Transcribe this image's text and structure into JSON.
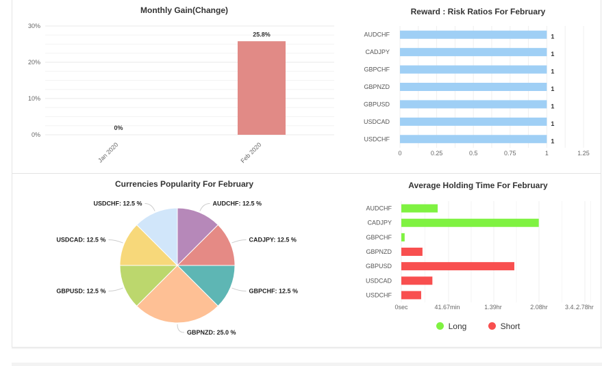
{
  "panels": {
    "monthly_gain": {
      "title": "Monthly Gain(Change)"
    },
    "risk_ratios": {
      "title": "Reward : Risk Ratios For February"
    },
    "popularity": {
      "title": "Currencies Popularity For February"
    },
    "holding_time": {
      "title": "Average Holding Time For February"
    }
  },
  "chart_data": [
    {
      "type": "bar",
      "title": "Monthly Gain(Change)",
      "categories": [
        "Jan 2020",
        "Feb 2020"
      ],
      "values": [
        0,
        25.8
      ],
      "data_labels": [
        "0%",
        "25.8%"
      ],
      "ylim": [
        0,
        30
      ],
      "yticks": [
        "0%",
        "10%",
        "20%",
        "30%"
      ],
      "color": "#e18a86",
      "grid": true
    },
    {
      "type": "bar",
      "orientation": "horizontal",
      "title": "Reward : Risk Ratios For February",
      "categories": [
        "AUDCHF",
        "CADJPY",
        "GBPCHF",
        "GBPNZD",
        "GBPUSD",
        "USDCAD",
        "USDCHF"
      ],
      "values": [
        1,
        1,
        1,
        1,
        1,
        1,
        1
      ],
      "data_labels": [
        "1",
        "1",
        "1",
        "1",
        "1",
        "1",
        "1"
      ],
      "xlim": [
        0,
        1.25
      ],
      "xticks": [
        "0",
        "0.25",
        "0.5",
        "0.75",
        "1",
        "1.25"
      ],
      "color": "#9fcff5",
      "grid": true
    },
    {
      "type": "pie",
      "title": "Currencies Popularity For February",
      "slices": [
        {
          "label": "AUDCHF: 12.5 %",
          "value": 12.5,
          "color": "#b688b9"
        },
        {
          "label": "CADJPY: 12.5 %",
          "value": 12.5,
          "color": "#e58a85"
        },
        {
          "label": "GBPCHF: 12.5 %",
          "value": 12.5,
          "color": "#5eb6b4"
        },
        {
          "label": "GBPNZD: 25.0 %",
          "value": 25.0,
          "color": "#fec095"
        },
        {
          "label": "GBPUSD: 12.5 %",
          "value": 12.5,
          "color": "#bcd76d"
        },
        {
          "label": "USDCAD: 12.5 %",
          "value": 12.5,
          "color": "#f7d87a"
        },
        {
          "label": "USDCHF: 12.5 %",
          "value": 12.5,
          "color": "#d1e6fa"
        }
      ]
    },
    {
      "type": "bar",
      "orientation": "horizontal",
      "title": "Average Holding Time For February",
      "categories": [
        "AUDCHF",
        "CADJPY",
        "GBPCHF",
        "GBPNZD",
        "GBPUSD",
        "USDCAD",
        "USDCHF"
      ],
      "values_hr": [
        0.55,
        2.08,
        0.05,
        0.32,
        1.71,
        0.47,
        0.3
      ],
      "series": [
        {
          "name": "Long",
          "color": "#7ff241"
        },
        {
          "name": "Short",
          "color": "#f84f4f"
        }
      ],
      "bar_series": [
        "Long",
        "Long",
        "Long",
        "Short",
        "Short",
        "Short",
        "Short"
      ],
      "xticks": [
        "0sec",
        "41.67min",
        "1.39hr",
        "2.08hr",
        "2.78hr",
        "3.4..."
      ],
      "xtick_values_hr": [
        0,
        0.6944,
        1.3889,
        2.0833,
        2.7778,
        3.4722
      ],
      "legend_position": "bottom",
      "grid": true
    }
  ]
}
